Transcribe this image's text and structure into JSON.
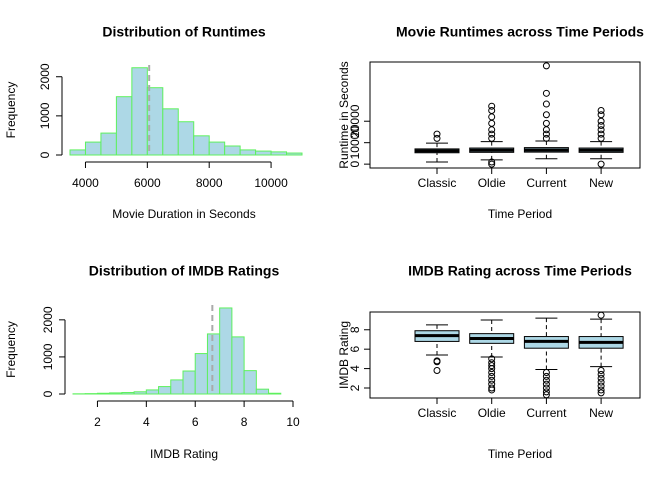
{
  "chart_data": [
    {
      "type": "histogram",
      "title": "Distribution of Runtimes",
      "xlabel": "Movie Duration in Seconds",
      "ylabel": "Frequency",
      "bins": [
        3500,
        4000,
        4500,
        5000,
        5500,
        6000,
        6500,
        7000,
        7500,
        8000,
        8500,
        9000,
        9500,
        10000,
        10500,
        11000
      ],
      "counts": [
        130,
        330,
        560,
        1490,
        2230,
        1720,
        1180,
        850,
        490,
        330,
        230,
        130,
        100,
        80,
        50
      ],
      "color": "#add8e6",
      "edgecolor": "#5ef05e",
      "mean_line": 6060,
      "mean_line_color": "#aaaaaa",
      "xlim": [
        3500,
        11000
      ],
      "ylim": [
        0,
        2300
      ],
      "xticks": [
        4000,
        6000,
        8000,
        10000
      ],
      "yticks": [
        0,
        1000,
        2000
      ]
    },
    {
      "type": "boxplot",
      "title": "Movie Runtimes across Time Periods",
      "xlabel": "Time Period",
      "ylabel": "Runtime in Seconds",
      "categories": [
        "Classic",
        "Oldie",
        "Current",
        "New"
      ],
      "color": "#add8e6",
      "boxes": [
        {
          "whislo": 1000,
          "q1": 5300,
          "med": 6200,
          "q3": 7100,
          "whishi": 9800,
          "outliers": [
            12000,
            14000
          ]
        },
        {
          "whislo": 2000,
          "q1": 5500,
          "med": 6500,
          "q3": 7500,
          "whishi": 10500,
          "outliers": [
            0,
            1000,
            12000,
            14000,
            16000,
            19000,
            22000,
            25000,
            27000
          ]
        },
        {
          "whislo": 2500,
          "q1": 5600,
          "med": 6600,
          "q3": 7700,
          "whishi": 10800,
          "outliers": [
            12000,
            14000,
            16000,
            19000,
            23000,
            28000,
            33000,
            45800
          ]
        },
        {
          "whislo": 2500,
          "q1": 5500,
          "med": 6500,
          "q3": 7500,
          "whishi": 10500,
          "outliers": [
            0,
            12000,
            14000,
            16000,
            18000,
            20000,
            23000,
            25000
          ]
        }
      ],
      "ylim": [
        -1800,
        47600
      ],
      "yticks": [
        0,
        10000,
        20000
      ]
    },
    {
      "type": "histogram",
      "title": "Distribution of IMDB Ratings",
      "xlabel": "IMDB Rating",
      "ylabel": "Frequency",
      "bins": [
        1,
        1.5,
        2,
        2.5,
        3,
        3.5,
        4,
        4.5,
        5,
        5.5,
        6,
        6.5,
        7,
        7.5,
        8,
        8.5,
        9,
        9.5
      ],
      "counts": [
        5,
        10,
        20,
        30,
        40,
        60,
        110,
        200,
        380,
        620,
        1090,
        1620,
        2320,
        1540,
        630,
        130,
        20
      ],
      "color": "#add8e6",
      "edgecolor": "#5ef05e",
      "mean_line": 6.7,
      "mean_line_color": "#aaaaaa",
      "xlim": [
        1,
        10
      ],
      "ylim": [
        0,
        2400
      ],
      "xticks": [
        2,
        4,
        6,
        8,
        10
      ],
      "yticks": [
        0,
        1000,
        2000
      ]
    },
    {
      "type": "boxplot",
      "title": "IMDB Rating across Time Periods",
      "xlabel": "Time Period",
      "ylabel": "IMDB Rating",
      "categories": [
        "Classic",
        "Oldie",
        "Current",
        "New"
      ],
      "color": "#add8e6",
      "boxes": [
        {
          "whislo": 5.4,
          "q1": 6.8,
          "med": 7.4,
          "q3": 7.9,
          "whishi": 8.5,
          "outliers": [
            4.8,
            4.7,
            3.8
          ]
        },
        {
          "whislo": 5.2,
          "q1": 6.6,
          "med": 7.1,
          "q3": 7.6,
          "whishi": 9.0,
          "outliers": [
            5.0,
            4.6,
            4.3,
            4.0,
            3.6,
            3.2,
            2.8,
            2.4,
            2.0,
            1.8
          ]
        },
        {
          "whislo": 3.9,
          "q1": 6.1,
          "med": 6.8,
          "q3": 7.3,
          "whishi": 9.2,
          "outliers": [
            3.6,
            3.2,
            2.8,
            2.4,
            2.0,
            1.6,
            1.3
          ]
        },
        {
          "whislo": 4.2,
          "q1": 6.1,
          "med": 6.7,
          "q3": 7.3,
          "whishi": 9.1,
          "outliers": [
            3.8,
            3.4,
            3.0,
            2.6,
            2.2,
            1.8,
            1.5,
            9.5
          ]
        }
      ],
      "ylim": [
        0.97,
        9.83
      ],
      "yticks": [
        2,
        4,
        6,
        8
      ]
    }
  ]
}
